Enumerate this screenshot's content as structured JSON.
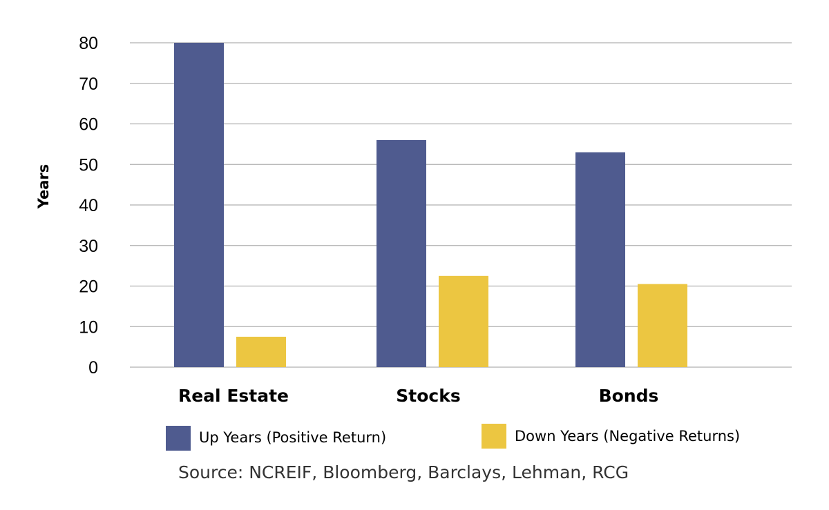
{
  "chart_data": {
    "type": "bar",
    "categories": [
      "Real Estate",
      "Stocks",
      "Bonds"
    ],
    "series": [
      {
        "name": "Up Years (Positive Return)",
        "values": [
          80,
          56,
          53
        ],
        "color": "#4f5b8f"
      },
      {
        "name": "Down Years (Negative Returns)",
        "values": [
          7.5,
          22.5,
          20.5
        ],
        "color": "#ecc641"
      }
    ],
    "ylabel": "Years",
    "ylim": [
      0,
      80
    ],
    "yticks": [
      0,
      10,
      20,
      30,
      40,
      50,
      60,
      70,
      80
    ],
    "grid": true,
    "gridline_color": "#b0b0b0",
    "legend_placement": "bottom",
    "source": "Source: NCREIF, Bloomberg, Barclays, Lehman, RCG"
  }
}
